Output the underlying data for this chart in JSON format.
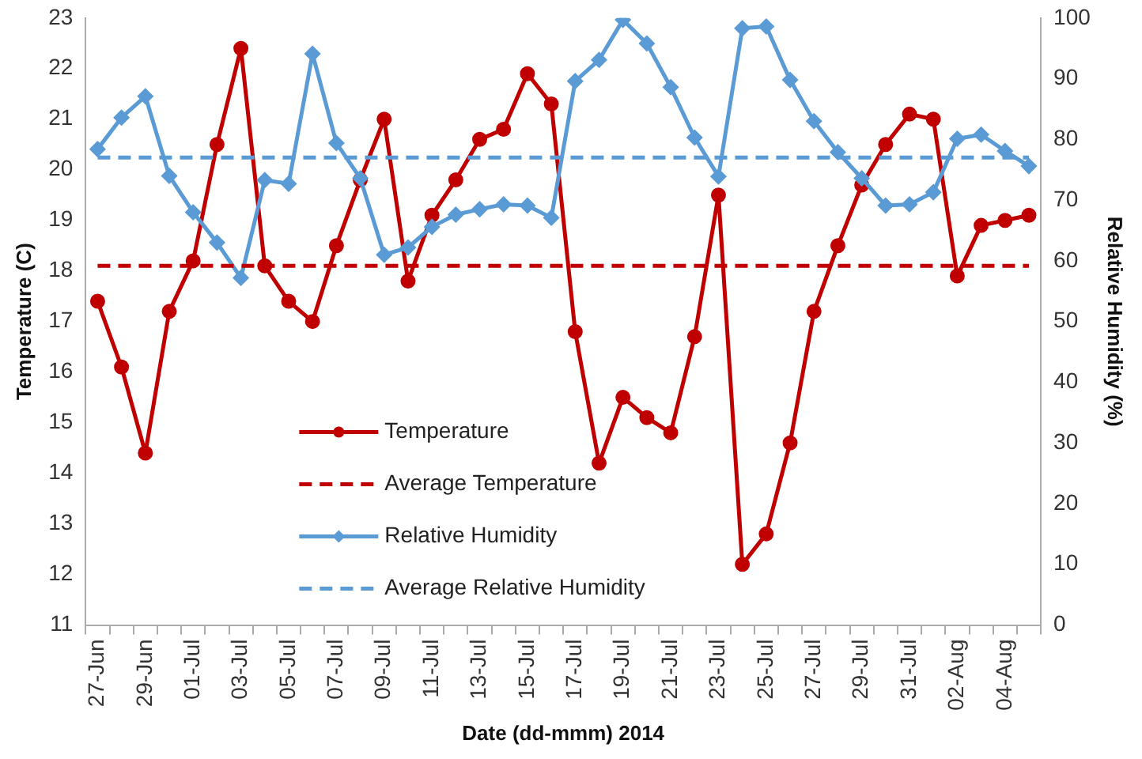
{
  "chart_data": {
    "type": "line",
    "xlabel": "Date (dd-mmm) 2014",
    "ylabel": "Temperature (C)",
    "y2label": "Relative Humidity (%)",
    "categories": [
      "27-Jun",
      null,
      "29-Jun",
      null,
      "01-Jul",
      null,
      "03-Jul",
      null,
      "05-Jul",
      null,
      "07-Jul",
      null,
      "09-Jul",
      null,
      "11-Jul",
      null,
      "13-Jul",
      null,
      "15-Jul",
      null,
      "17-Jul",
      null,
      "19-Jul",
      null,
      "21-Jul",
      null,
      "23-Jul",
      null,
      "25-Jul",
      null,
      "27-Jul",
      null,
      "29-Jul",
      null,
      "31-Jul",
      null,
      "02-Aug",
      null,
      "04-Aug",
      null
    ],
    "series": [
      {
        "name": "Temperature",
        "color": "#c00000",
        "marker": "circle",
        "values": [
          17.4,
          16.1,
          14.4,
          17.2,
          18.2,
          20.5,
          22.4,
          18.1,
          17.4,
          17.0,
          18.5,
          19.8,
          21.0,
          17.8,
          19.1,
          19.8,
          20.6,
          20.8,
          21.9,
          21.3,
          16.8,
          14.2,
          15.5,
          15.1,
          14.8,
          16.7,
          19.5,
          12.2,
          12.8,
          14.6,
          17.2,
          18.5,
          19.7,
          20.5,
          21.1,
          21.0,
          17.9,
          18.9,
          19.0,
          19.1
        ]
      },
      {
        "name": "Relative Humidity",
        "color": "#5b9bd5",
        "marker": "diamond",
        "axis": "y2",
        "values": [
          78.4,
          83.6,
          87.1,
          74.0,
          68.0,
          63.0,
          57.2,
          73.3,
          72.7,
          94.1,
          79.4,
          73.6,
          61.0,
          62.2,
          65.6,
          67.6,
          68.5,
          69.3,
          69.1,
          67.1,
          89.6,
          93.1,
          99.7,
          95.8,
          88.6,
          80.3,
          73.9,
          98.3,
          98.6,
          89.8,
          83.0,
          77.9,
          73.6,
          69.1,
          69.3,
          71.3,
          80.1,
          80.8,
          78.1,
          75.6
        ]
      }
    ],
    "ref_lines": [
      {
        "axis": "y",
        "value": 18.1,
        "label": "Average Temperature",
        "color": "#c00000",
        "line_style": "dashed"
      },
      {
        "axis": "y2",
        "value": 77,
        "label": "Average Relative Humidity",
        "color": "#5b9bd5",
        "line_style": "dashed"
      }
    ],
    "ylim": [
      11,
      23
    ],
    "yticks": [
      11,
      12,
      13,
      14,
      15,
      16,
      17,
      18,
      19,
      20,
      21,
      22,
      23
    ],
    "y2lim": [
      0,
      100
    ],
    "y2ticks": [
      0,
      10,
      20,
      30,
      40,
      50,
      60,
      70,
      80,
      90,
      100
    ],
    "grid": false,
    "legend": "bottom left"
  }
}
